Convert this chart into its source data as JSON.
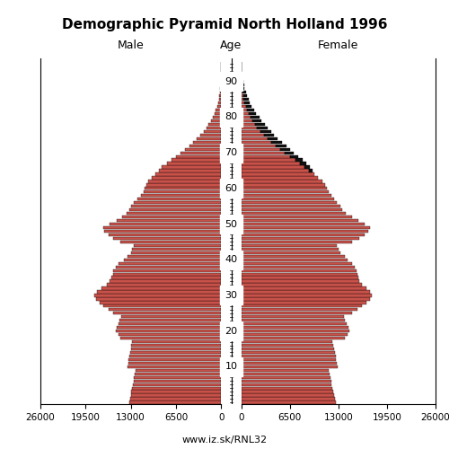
{
  "title": "Demographic Pyramid North Holland 1996",
  "label_male": "Male",
  "label_female": "Female",
  "label_age": "Age",
  "footnote": "www.iz.sk/RNL32",
  "xlim": 26000,
  "bar_color_main": "#C8524A",
  "bar_color_excess": "#111111",
  "bar_edgecolor": "#000000",
  "ages": [
    0,
    1,
    2,
    3,
    4,
    5,
    6,
    7,
    8,
    9,
    10,
    11,
    12,
    13,
    14,
    15,
    16,
    17,
    18,
    19,
    20,
    21,
    22,
    23,
    24,
    25,
    26,
    27,
    28,
    29,
    30,
    31,
    32,
    33,
    34,
    35,
    36,
    37,
    38,
    39,
    40,
    41,
    42,
    43,
    44,
    45,
    46,
    47,
    48,
    49,
    50,
    51,
    52,
    53,
    54,
    55,
    56,
    57,
    58,
    59,
    60,
    61,
    62,
    63,
    64,
    65,
    66,
    67,
    68,
    69,
    70,
    71,
    72,
    73,
    74,
    75,
    76,
    77,
    78,
    79,
    80,
    81,
    82,
    83,
    84,
    85,
    86,
    87,
    88,
    89,
    90,
    91,
    92,
    93,
    94,
    95
  ],
  "male": [
    13200,
    13100,
    13000,
    12900,
    12800,
    12700,
    12600,
    12500,
    12400,
    12300,
    13500,
    13400,
    13300,
    13200,
    13100,
    13000,
    12900,
    12800,
    14500,
    14800,
    15200,
    15000,
    14800,
    14600,
    14400,
    15500,
    16200,
    17000,
    17500,
    18000,
    18200,
    17800,
    17200,
    16500,
    16000,
    15800,
    15600,
    15500,
    15200,
    14800,
    14000,
    13500,
    13000,
    12800,
    12600,
    14500,
    15500,
    16200,
    16800,
    17000,
    16000,
    15000,
    14200,
    13600,
    13200,
    13000,
    12500,
    12000,
    11500,
    11200,
    11000,
    10800,
    10500,
    10000,
    9500,
    9000,
    8500,
    7800,
    7200,
    6500,
    5800,
    5200,
    4600,
    4000,
    3500,
    3000,
    2500,
    2100,
    1800,
    1500,
    1200,
    950,
    750,
    580,
    440,
    330,
    240,
    170,
    115,
    75,
    45,
    26,
    14,
    7,
    3,
    1
  ],
  "female": [
    12600,
    12500,
    12400,
    12300,
    12200,
    12100,
    12000,
    11900,
    11800,
    11700,
    12900,
    12800,
    12700,
    12600,
    12500,
    12400,
    12300,
    12200,
    13800,
    14200,
    14500,
    14300,
    14100,
    13900,
    13700,
    14800,
    15500,
    16200,
    16800,
    17200,
    17500,
    17200,
    16800,
    16200,
    15800,
    15600,
    15500,
    15400,
    15200,
    14800,
    14200,
    13800,
    13200,
    13000,
    12800,
    14800,
    15800,
    16500,
    17000,
    17200,
    16500,
    15600,
    14800,
    14000,
    13500,
    13200,
    12800,
    12400,
    12000,
    11700,
    11500,
    11200,
    10800,
    10300,
    9800,
    9500,
    9200,
    8700,
    8200,
    7600,
    7000,
    6500,
    6000,
    5400,
    4800,
    4400,
    4000,
    3500,
    3100,
    2700,
    2400,
    2000,
    1700,
    1400,
    1150,
    950,
    760,
    590,
    450,
    340,
    240,
    165,
    105,
    62,
    34,
    16
  ],
  "age_ticks": [
    10,
    20,
    30,
    40,
    50,
    60,
    70,
    80,
    90
  ],
  "female_excess_age": 65,
  "xtick_labels": [
    "26000",
    "19500",
    "13000",
    "6500",
    "0",
    "0",
    "6500",
    "13000",
    "19500",
    "26000"
  ],
  "xtick_vals_left": [
    26000,
    19500,
    13000,
    6500,
    0
  ],
  "xtick_vals_right": [
    0,
    6500,
    13000,
    19500,
    26000
  ]
}
